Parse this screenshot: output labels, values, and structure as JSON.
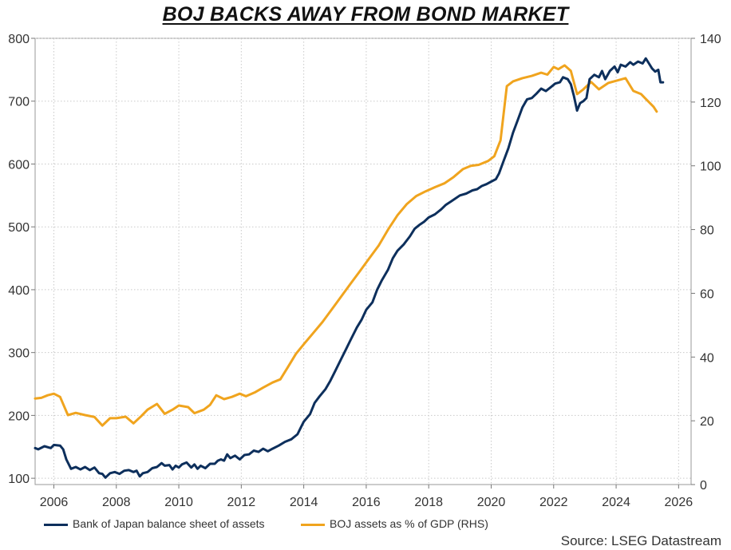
{
  "title": "BOJ BACKS AWAY FROM BOND MARKET",
  "source": "Source: LSEG Datastream",
  "chart_data": {
    "type": "line",
    "title": "BOJ BACKS AWAY FROM BOND MARKET",
    "xlim": [
      2005.4,
      2026.4
    ],
    "x_ticks": [
      2006,
      2008,
      2010,
      2012,
      2014,
      2016,
      2018,
      2020,
      2022,
      2024,
      2026
    ],
    "y_left": {
      "lim": [
        90,
        800
      ],
      "ticks": [
        100,
        200,
        300,
        400,
        500,
        600,
        700,
        800
      ]
    },
    "y_right": {
      "lim": [
        0,
        140
      ],
      "ticks": [
        0,
        20,
        40,
        60,
        80,
        100,
        120,
        140
      ]
    },
    "grid": true,
    "legend_position": "bottom",
    "series": [
      {
        "name": "Bank of Japan balance sheet of assets",
        "color": "#0d2f5c",
        "axis": "left",
        "points": [
          [
            2005.4,
            148
          ],
          [
            2005.5,
            146
          ],
          [
            2005.7,
            151
          ],
          [
            2005.9,
            148
          ],
          [
            2006.0,
            153
          ],
          [
            2006.2,
            152
          ],
          [
            2006.3,
            146
          ],
          [
            2006.4,
            130
          ],
          [
            2006.55,
            115
          ],
          [
            2006.7,
            118
          ],
          [
            2006.85,
            114
          ],
          [
            2007.0,
            118
          ],
          [
            2007.15,
            113
          ],
          [
            2007.3,
            117
          ],
          [
            2007.45,
            108
          ],
          [
            2007.55,
            107
          ],
          [
            2007.65,
            101
          ],
          [
            2007.8,
            108
          ],
          [
            2007.95,
            110
          ],
          [
            2008.1,
            107
          ],
          [
            2008.25,
            112
          ],
          [
            2008.4,
            113
          ],
          [
            2008.55,
            110
          ],
          [
            2008.65,
            112
          ],
          [
            2008.75,
            103
          ],
          [
            2008.85,
            108
          ],
          [
            2009.0,
            110
          ],
          [
            2009.15,
            116
          ],
          [
            2009.3,
            118
          ],
          [
            2009.45,
            124
          ],
          [
            2009.55,
            120
          ],
          [
            2009.7,
            121
          ],
          [
            2009.8,
            114
          ],
          [
            2009.9,
            120
          ],
          [
            2010.0,
            117
          ],
          [
            2010.1,
            122
          ],
          [
            2010.25,
            125
          ],
          [
            2010.4,
            117
          ],
          [
            2010.5,
            122
          ],
          [
            2010.6,
            115
          ],
          [
            2010.7,
            120
          ],
          [
            2010.85,
            116
          ],
          [
            2011.0,
            123
          ],
          [
            2011.15,
            123
          ],
          [
            2011.25,
            128
          ],
          [
            2011.35,
            130
          ],
          [
            2011.45,
            128
          ],
          [
            2011.55,
            138
          ],
          [
            2011.65,
            132
          ],
          [
            2011.8,
            136
          ],
          [
            2011.95,
            130
          ],
          [
            2012.1,
            137
          ],
          [
            2012.25,
            138
          ],
          [
            2012.4,
            144
          ],
          [
            2012.55,
            142
          ],
          [
            2012.7,
            147
          ],
          [
            2012.85,
            143
          ],
          [
            2013.0,
            147
          ],
          [
            2013.2,
            152
          ],
          [
            2013.4,
            158
          ],
          [
            2013.6,
            162
          ],
          [
            2013.8,
            170
          ],
          [
            2013.9,
            180
          ],
          [
            2014.0,
            190
          ],
          [
            2014.2,
            202
          ],
          [
            2014.35,
            220
          ],
          [
            2014.5,
            230
          ],
          [
            2014.7,
            242
          ],
          [
            2014.85,
            255
          ],
          [
            2015.0,
            270
          ],
          [
            2015.2,
            290
          ],
          [
            2015.35,
            305
          ],
          [
            2015.5,
            320
          ],
          [
            2015.7,
            340
          ],
          [
            2015.85,
            352
          ],
          [
            2016.0,
            368
          ],
          [
            2016.2,
            380
          ],
          [
            2016.35,
            400
          ],
          [
            2016.5,
            415
          ],
          [
            2016.7,
            432
          ],
          [
            2016.85,
            450
          ],
          [
            2017.0,
            462
          ],
          [
            2017.2,
            472
          ],
          [
            2017.4,
            485
          ],
          [
            2017.55,
            497
          ],
          [
            2017.7,
            503
          ],
          [
            2017.85,
            508
          ],
          [
            2018.0,
            515
          ],
          [
            2018.2,
            520
          ],
          [
            2018.4,
            528
          ],
          [
            2018.55,
            535
          ],
          [
            2018.7,
            540
          ],
          [
            2018.85,
            545
          ],
          [
            2019.0,
            550
          ],
          [
            2019.2,
            553
          ],
          [
            2019.4,
            558
          ],
          [
            2019.55,
            560
          ],
          [
            2019.7,
            565
          ],
          [
            2019.85,
            568
          ],
          [
            2020.0,
            572
          ],
          [
            2020.15,
            576
          ],
          [
            2020.25,
            585
          ],
          [
            2020.4,
            605
          ],
          [
            2020.55,
            625
          ],
          [
            2020.7,
            650
          ],
          [
            2020.85,
            670
          ],
          [
            2021.0,
            690
          ],
          [
            2021.15,
            703
          ],
          [
            2021.3,
            705
          ],
          [
            2021.45,
            712
          ],
          [
            2021.6,
            720
          ],
          [
            2021.75,
            716
          ],
          [
            2021.9,
            722
          ],
          [
            2022.05,
            728
          ],
          [
            2022.2,
            730
          ],
          [
            2022.3,
            738
          ],
          [
            2022.45,
            735
          ],
          [
            2022.55,
            727
          ],
          [
            2022.65,
            708
          ],
          [
            2022.75,
            685
          ],
          [
            2022.85,
            697
          ],
          [
            2022.95,
            700
          ],
          [
            2023.05,
            705
          ],
          [
            2023.15,
            735
          ],
          [
            2023.3,
            742
          ],
          [
            2023.45,
            738
          ],
          [
            2023.55,
            748
          ],
          [
            2023.65,
            735
          ],
          [
            2023.8,
            748
          ],
          [
            2023.95,
            755
          ],
          [
            2024.05,
            746
          ],
          [
            2024.15,
            758
          ],
          [
            2024.3,
            755
          ],
          [
            2024.45,
            762
          ],
          [
            2024.55,
            758
          ],
          [
            2024.7,
            763
          ],
          [
            2024.85,
            760
          ],
          [
            2024.95,
            768
          ],
          [
            2025.05,
            760
          ],
          [
            2025.15,
            752
          ],
          [
            2025.25,
            747
          ],
          [
            2025.35,
            750
          ],
          [
            2025.42,
            730
          ],
          [
            2025.5,
            730
          ]
        ]
      },
      {
        "name": "BOJ assets as % of GDP (RHS)",
        "color": "#f0a41e",
        "axis": "right",
        "points": [
          [
            2005.4,
            27
          ],
          [
            2005.6,
            27.2
          ],
          [
            2005.8,
            28
          ],
          [
            2006.0,
            28.5
          ],
          [
            2006.2,
            27.5
          ],
          [
            2006.45,
            21.8
          ],
          [
            2006.7,
            22.5
          ],
          [
            2007.0,
            21.8
          ],
          [
            2007.3,
            21.2
          ],
          [
            2007.55,
            18.5
          ],
          [
            2007.8,
            20.8
          ],
          [
            2008.0,
            20.8
          ],
          [
            2008.3,
            21.3
          ],
          [
            2008.55,
            19.2
          ],
          [
            2008.8,
            21.5
          ],
          [
            2009.0,
            23.5
          ],
          [
            2009.3,
            25.3
          ],
          [
            2009.55,
            22.2
          ],
          [
            2009.8,
            23.5
          ],
          [
            2010.0,
            24.8
          ],
          [
            2010.3,
            24.3
          ],
          [
            2010.5,
            22.4
          ],
          [
            2010.8,
            23.5
          ],
          [
            2011.0,
            25.0
          ],
          [
            2011.2,
            28.0
          ],
          [
            2011.45,
            26.8
          ],
          [
            2011.7,
            27.5
          ],
          [
            2011.95,
            28.5
          ],
          [
            2012.15,
            27.7
          ],
          [
            2012.45,
            29.0
          ],
          [
            2012.7,
            30.4
          ],
          [
            2013.0,
            32.0
          ],
          [
            2013.25,
            33.0
          ],
          [
            2013.5,
            37.0
          ],
          [
            2013.75,
            41.0
          ],
          [
            2014.0,
            44.0
          ],
          [
            2014.3,
            47.5
          ],
          [
            2014.6,
            51.0
          ],
          [
            2014.9,
            55.0
          ],
          [
            2015.2,
            59.0
          ],
          [
            2015.5,
            63.0
          ],
          [
            2015.8,
            67.0
          ],
          [
            2016.1,
            71.0
          ],
          [
            2016.4,
            75.0
          ],
          [
            2016.7,
            80.0
          ],
          [
            2017.0,
            84.5
          ],
          [
            2017.3,
            88.0
          ],
          [
            2017.6,
            90.5
          ],
          [
            2017.9,
            92.0
          ],
          [
            2018.2,
            93.3
          ],
          [
            2018.5,
            94.5
          ],
          [
            2018.8,
            96.5
          ],
          [
            2019.1,
            99.0
          ],
          [
            2019.35,
            100.0
          ],
          [
            2019.6,
            100.3
          ],
          [
            2019.9,
            101.5
          ],
          [
            2020.1,
            103.0
          ],
          [
            2020.3,
            108.0
          ],
          [
            2020.5,
            125.0
          ],
          [
            2020.7,
            126.5
          ],
          [
            2021.0,
            127.5
          ],
          [
            2021.3,
            128.2
          ],
          [
            2021.6,
            129.2
          ],
          [
            2021.8,
            128.6
          ],
          [
            2022.0,
            131.0
          ],
          [
            2022.15,
            130.3
          ],
          [
            2022.35,
            131.5
          ],
          [
            2022.55,
            129.8
          ],
          [
            2022.75,
            122.5
          ],
          [
            2022.95,
            124.0
          ],
          [
            2023.2,
            126.3
          ],
          [
            2023.45,
            124.0
          ],
          [
            2023.75,
            126.0
          ],
          [
            2024.05,
            126.8
          ],
          [
            2024.3,
            127.5
          ],
          [
            2024.55,
            123.5
          ],
          [
            2024.8,
            122.5
          ],
          [
            2025.0,
            120.5
          ],
          [
            2025.2,
            118.5
          ],
          [
            2025.3,
            117.0
          ]
        ]
      }
    ]
  }
}
